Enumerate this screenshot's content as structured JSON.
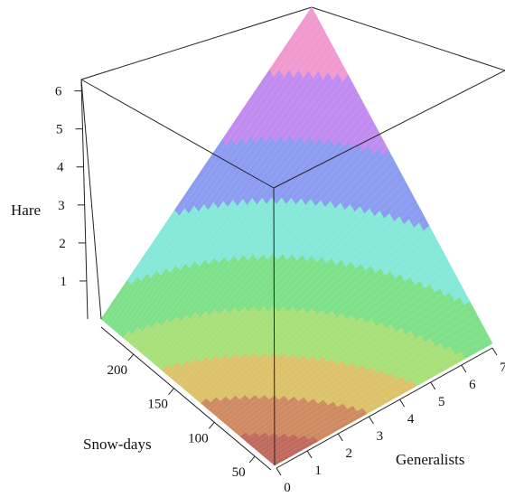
{
  "chart_data": {
    "type": "surface3d",
    "axes": {
      "z": {
        "label": "Hare",
        "ticks": [
          1,
          2,
          3,
          4,
          5,
          6
        ],
        "range": [
          0,
          6.3
        ]
      },
      "y": {
        "label": "Snow-days",
        "ticks": [
          50,
          100,
          150,
          200
        ],
        "range": [
          30,
          240
        ]
      },
      "x": {
        "label": "Generalists",
        "ticks": [
          0,
          1,
          2,
          3,
          4,
          5,
          6,
          7
        ],
        "range": [
          0,
          7
        ]
      }
    },
    "surface": {
      "description": "Hare increases linearly with Snow-days and Generalists",
      "corner_values": [
        {
          "snow_days": 30,
          "generalists": 0,
          "hare": 0.0
        },
        {
          "snow_days": 240,
          "generalists": 0,
          "hare": 0.2
        },
        {
          "snow_days": 30,
          "generalists": 7,
          "hare": 0.6
        },
        {
          "snow_days": 240,
          "generalists": 7,
          "hare": 6.3
        }
      ],
      "color_bands": [
        "#c06a5e",
        "#cf8a62",
        "#dcc26a",
        "#a8e07a",
        "#7fe08a",
        "#86e8d8",
        "#8c9cf0",
        "#c08cf0",
        "#f09ad0"
      ]
    }
  }
}
